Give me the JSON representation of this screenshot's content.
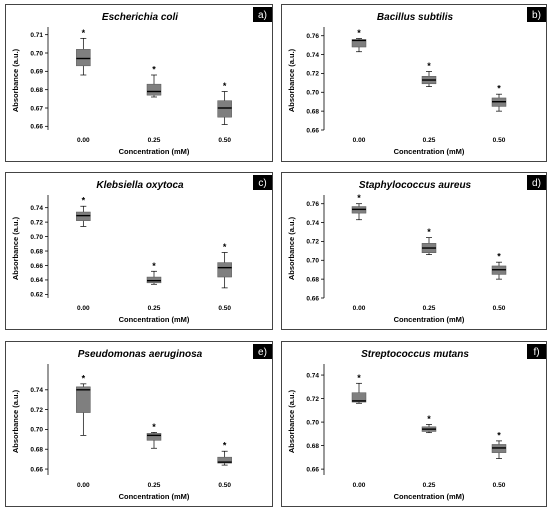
{
  "chart_data": [
    {
      "type": "box",
      "panel_label": "a)",
      "title": "Escherichia coli",
      "xlabel": "Concentration (mM)",
      "ylabel": "Absorbance (a.u.)",
      "categories": [
        "0.00",
        "0.25",
        "0.50"
      ],
      "ylim": [
        0.658,
        0.712
      ],
      "yticks": [
        "0.66",
        "0.67",
        "0.68",
        "0.69",
        "0.70",
        "0.71"
      ],
      "boxes": [
        {
          "min": 0.688,
          "q1": 0.693,
          "median": 0.697,
          "q3": 0.702,
          "max": 0.708,
          "star": "*"
        },
        {
          "min": 0.676,
          "q1": 0.677,
          "median": 0.679,
          "q3": 0.683,
          "max": 0.688,
          "star": "*"
        },
        {
          "min": 0.661,
          "q1": 0.665,
          "median": 0.67,
          "q3": 0.674,
          "max": 0.679,
          "star": "*"
        }
      ]
    },
    {
      "type": "box",
      "panel_label": "b)",
      "title": "Bacillus subtilis",
      "xlabel": "Concentration (mM)",
      "ylabel": "Absorbance (a.u.)",
      "categories": [
        "0.00",
        "0.25",
        "0.50"
      ],
      "ylim": [
        0.66,
        0.765
      ],
      "yticks": [
        "0.66",
        "0.68",
        "0.70",
        "0.72",
        "0.74",
        "0.76"
      ],
      "boxes": [
        {
          "min": 0.743,
          "q1": 0.748,
          "median": 0.755,
          "q3": 0.756,
          "max": 0.757,
          "star": "*"
        },
        {
          "min": 0.706,
          "q1": 0.709,
          "median": 0.713,
          "q3": 0.717,
          "max": 0.722,
          "star": "*"
        },
        {
          "min": 0.68,
          "q1": 0.685,
          "median": 0.69,
          "q3": 0.694,
          "max": 0.698,
          "star": "*"
        }
      ]
    },
    {
      "type": "box",
      "panel_label": "c)",
      "title": "Klebsiella oxytoca",
      "xlabel": "Concentration (mM)",
      "ylabel": "Absorbance (a.u.)",
      "categories": [
        "0.00",
        "0.25",
        "0.50"
      ],
      "ylim": [
        0.615,
        0.752
      ],
      "yticks": [
        "0.62",
        "0.64",
        "0.66",
        "0.68",
        "0.70",
        "0.72",
        "0.74"
      ],
      "boxes": [
        {
          "min": 0.714,
          "q1": 0.722,
          "median": 0.729,
          "q3": 0.734,
          "max": 0.742,
          "star": "*"
        },
        {
          "min": 0.634,
          "q1": 0.636,
          "median": 0.639,
          "q3": 0.644,
          "max": 0.652,
          "star": "*"
        },
        {
          "min": 0.629,
          "q1": 0.644,
          "median": 0.657,
          "q3": 0.664,
          "max": 0.678,
          "star": "*"
        }
      ]
    },
    {
      "type": "box",
      "panel_label": "d)",
      "title": "Staphylococcus aureus",
      "xlabel": "Concentration (mM)",
      "ylabel": "Absorbance (a.u.)",
      "categories": [
        "0.00",
        "0.25",
        "0.50"
      ],
      "ylim": [
        0.66,
        0.765
      ],
      "yticks": [
        "0.66",
        "0.68",
        "0.70",
        "0.72",
        "0.74",
        "0.76"
      ],
      "boxes": [
        {
          "min": 0.743,
          "q1": 0.75,
          "median": 0.754,
          "q3": 0.757,
          "max": 0.76,
          "star": "*"
        },
        {
          "min": 0.706,
          "q1": 0.708,
          "median": 0.713,
          "q3": 0.718,
          "max": 0.724,
          "star": "*"
        },
        {
          "min": 0.68,
          "q1": 0.685,
          "median": 0.69,
          "q3": 0.694,
          "max": 0.698,
          "star": "*"
        }
      ]
    },
    {
      "type": "box",
      "panel_label": "e)",
      "title": "Pseudomonas aeruginosa",
      "xlabel": "Concentration (mM)",
      "ylabel": "Absorbance (a.u.)",
      "categories": [
        "0.00",
        "0.25",
        "0.50"
      ],
      "ylim": [
        0.654,
        0.762
      ],
      "yticks": [
        "0.66",
        "0.68",
        "0.70",
        "0.72",
        "0.74"
      ],
      "boxes": [
        {
          "min": 0.694,
          "q1": 0.717,
          "median": 0.74,
          "q3": 0.743,
          "max": 0.746,
          "star": "*"
        },
        {
          "min": 0.681,
          "q1": 0.689,
          "median": 0.694,
          "q3": 0.696,
          "max": 0.697,
          "star": "*"
        },
        {
          "min": 0.664,
          "q1": 0.666,
          "median": 0.667,
          "q3": 0.672,
          "max": 0.678,
          "star": "*"
        }
      ]
    },
    {
      "type": "box",
      "panel_label": "f)",
      "title": "Streptococcus mutans",
      "xlabel": "Concentration (mM)",
      "ylabel": "Absorbance (a.u.)",
      "categories": [
        "0.00",
        "0.25",
        "0.50"
      ],
      "ylim": [
        0.655,
        0.746
      ],
      "yticks": [
        "0.66",
        "0.68",
        "0.70",
        "0.72",
        "0.74"
      ],
      "boxes": [
        {
          "min": 0.716,
          "q1": 0.717,
          "median": 0.718,
          "q3": 0.725,
          "max": 0.733,
          "star": "*"
        },
        {
          "min": 0.691,
          "q1": 0.692,
          "median": 0.694,
          "q3": 0.696,
          "max": 0.698,
          "star": "*"
        },
        {
          "min": 0.669,
          "q1": 0.674,
          "median": 0.678,
          "q3": 0.681,
          "max": 0.684,
          "star": "*"
        }
      ]
    }
  ],
  "style": {
    "box_fill": "#7f7f7f",
    "line_color": "#000000",
    "frame_color": "#444444",
    "label_box_fill": "#000000",
    "label_text_color": "#ffffff"
  }
}
